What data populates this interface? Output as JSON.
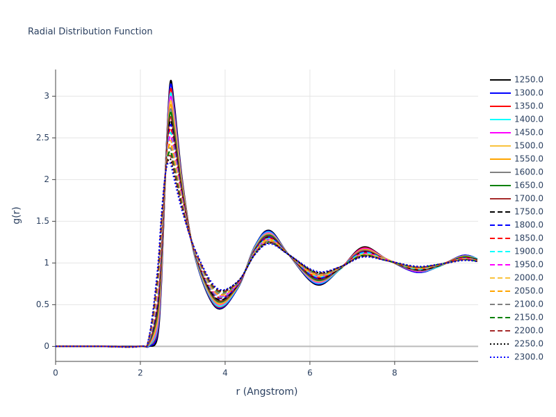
{
  "chart_data": {
    "type": "line",
    "title": "Radial Distribution Function",
    "x_label": "r (Angstrom)",
    "y_label": "g(r)",
    "x": [
      0,
      1,
      2.0,
      2.2,
      2.4,
      2.5,
      2.6,
      2.7,
      2.8,
      3.0,
      3.3,
      3.8,
      4.3,
      4.7,
      5.05,
      5.5,
      6.15,
      6.7,
      7.25,
      7.8,
      8.5,
      9.0,
      9.6,
      9.95
    ],
    "xlim": [
      0,
      9.97
    ],
    "xticks": [
      0,
      2,
      4,
      6,
      8
    ],
    "ylim": [
      -0.18,
      3.32
    ],
    "yticks": [
      0,
      0.5,
      1,
      1.5,
      2,
      2.5,
      3
    ],
    "grid": true,
    "series": [
      {
        "name": "1250.0",
        "color": "black",
        "dash": "solid",
        "values": [
          0,
          0,
          0,
          0,
          0.1,
          0.8,
          2.2,
          3.15,
          2.9,
          1.95,
          1.05,
          0.46,
          0.7,
          1.2,
          1.39,
          1.1,
          0.74,
          0.92,
          1.19,
          1.05,
          0.89,
          0.95,
          1.09,
          1.05
        ]
      },
      {
        "name": "1300.0",
        "color": "blue",
        "dash": "solid",
        "values": [
          0,
          0,
          0,
          0,
          0.14,
          0.84,
          2.2,
          3.11,
          2.86,
          1.93,
          1.05,
          0.47,
          0.7,
          1.2,
          1.38,
          1.1,
          0.75,
          0.92,
          1.18,
          1.05,
          0.89,
          0.95,
          1.09,
          1.05
        ]
      },
      {
        "name": "1350.0",
        "color": "red",
        "dash": "solid",
        "values": [
          0,
          0,
          0,
          0.01,
          0.18,
          0.88,
          2.19,
          3.06,
          2.81,
          1.92,
          1.06,
          0.48,
          0.71,
          1.19,
          1.37,
          1.1,
          0.76,
          0.92,
          1.18,
          1.05,
          0.9,
          0.95,
          1.08,
          1.05
        ]
      },
      {
        "name": "1400.0",
        "color": "cyan",
        "dash": "solid",
        "values": [
          0,
          0,
          0,
          0.01,
          0.21,
          0.91,
          2.19,
          3.01,
          2.77,
          1.9,
          1.06,
          0.49,
          0.71,
          1.19,
          1.37,
          1.1,
          0.76,
          0.92,
          1.17,
          1.05,
          0.9,
          0.95,
          1.08,
          1.05
        ]
      },
      {
        "name": "1450.0",
        "color": "magenta",
        "dash": "solid",
        "values": [
          0,
          0,
          0,
          0.02,
          0.25,
          0.95,
          2.18,
          2.97,
          2.73,
          1.88,
          1.07,
          0.51,
          0.72,
          1.18,
          1.36,
          1.1,
          0.77,
          0.93,
          1.17,
          1.05,
          0.9,
          0.96,
          1.08,
          1.04
        ]
      },
      {
        "name": "1500.0",
        "color": "#f9c23c",
        "dash": "solid",
        "values": [
          0,
          0,
          0,
          0.02,
          0.29,
          0.99,
          2.18,
          2.92,
          2.69,
          1.87,
          1.07,
          0.52,
          0.72,
          1.18,
          1.35,
          1.1,
          0.78,
          0.93,
          1.16,
          1.05,
          0.91,
          0.96,
          1.08,
          1.04
        ]
      },
      {
        "name": "1550.0",
        "color": "#ffa500",
        "dash": "solid",
        "values": [
          0,
          0,
          0,
          0.03,
          0.33,
          1.03,
          2.17,
          2.88,
          2.64,
          1.85,
          1.08,
          0.53,
          0.72,
          1.17,
          1.34,
          1.1,
          0.79,
          0.93,
          1.16,
          1.04,
          0.91,
          0.96,
          1.07,
          1.04
        ]
      },
      {
        "name": "1600.0",
        "color": "gray",
        "dash": "solid",
        "values": [
          0,
          0,
          0,
          0.03,
          0.37,
          1.07,
          2.17,
          2.83,
          2.6,
          1.83,
          1.08,
          0.54,
          0.73,
          1.17,
          1.34,
          1.1,
          0.79,
          0.93,
          1.15,
          1.04,
          0.91,
          0.96,
          1.07,
          1.04
        ]
      },
      {
        "name": "1650.0",
        "color": "green",
        "dash": "solid",
        "values": [
          0,
          0,
          0,
          0.04,
          0.4,
          1.1,
          2.16,
          2.79,
          2.56,
          1.82,
          1.09,
          0.55,
          0.73,
          1.16,
          1.33,
          1.1,
          0.8,
          0.93,
          1.14,
          1.04,
          0.92,
          0.96,
          1.07,
          1.04
        ]
      },
      {
        "name": "1700.0",
        "color": "#a52a2a",
        "dash": "solid",
        "values": [
          0,
          0,
          0,
          0.04,
          0.44,
          1.14,
          2.16,
          2.74,
          2.51,
          1.8,
          1.09,
          0.56,
          0.73,
          1.16,
          1.32,
          1.1,
          0.81,
          0.93,
          1.14,
          1.04,
          0.92,
          0.96,
          1.06,
          1.04
        ]
      },
      {
        "name": "1750.0",
        "color": "black",
        "dash": "dash",
        "values": [
          0,
          0,
          0,
          0.05,
          0.48,
          1.18,
          2.15,
          2.7,
          2.47,
          1.78,
          1.1,
          0.57,
          0.74,
          1.15,
          1.31,
          1.1,
          0.82,
          0.93,
          1.13,
          1.04,
          0.92,
          0.96,
          1.06,
          1.04
        ]
      },
      {
        "name": "1800.0",
        "color": "blue",
        "dash": "dash",
        "values": [
          0,
          0,
          0,
          0.05,
          0.52,
          1.22,
          2.15,
          2.65,
          2.43,
          1.77,
          1.1,
          0.59,
          0.74,
          1.15,
          1.31,
          1.1,
          0.82,
          0.94,
          1.13,
          1.04,
          0.93,
          0.97,
          1.06,
          1.03
        ]
      },
      {
        "name": "1850.0",
        "color": "red",
        "dash": "dash",
        "values": [
          0,
          0,
          0,
          0.06,
          0.56,
          1.26,
          2.14,
          2.61,
          2.39,
          1.75,
          1.11,
          0.6,
          0.75,
          1.14,
          1.3,
          1.1,
          0.83,
          0.94,
          1.12,
          1.04,
          0.93,
          0.97,
          1.06,
          1.03
        ]
      },
      {
        "name": "1900.0",
        "color": "cyan",
        "dash": "dash",
        "values": [
          0,
          0,
          0,
          0.06,
          0.6,
          1.3,
          2.14,
          2.56,
          2.34,
          1.73,
          1.11,
          0.61,
          0.75,
          1.14,
          1.29,
          1.1,
          0.84,
          0.94,
          1.12,
          1.04,
          0.93,
          0.97,
          1.05,
          1.03
        ]
      },
      {
        "name": "1950.0",
        "color": "magenta",
        "dash": "dash",
        "values": [
          0,
          0,
          0,
          0.07,
          0.63,
          1.33,
          2.13,
          2.52,
          2.3,
          1.72,
          1.12,
          0.62,
          0.75,
          1.13,
          1.28,
          1.1,
          0.85,
          0.94,
          1.11,
          1.04,
          0.94,
          0.97,
          1.05,
          1.03
        ]
      },
      {
        "name": "2000.0",
        "color": "#f9c23c",
        "dash": "dash",
        "values": [
          0,
          0,
          0,
          0.07,
          0.67,
          1.37,
          2.13,
          2.47,
          2.26,
          1.7,
          1.12,
          0.63,
          0.76,
          1.13,
          1.28,
          1.1,
          0.85,
          0.94,
          1.1,
          1.04,
          0.94,
          0.97,
          1.05,
          1.03
        ]
      },
      {
        "name": "2050.0",
        "color": "#ffa500",
        "dash": "dash",
        "values": [
          0,
          0,
          0,
          0.08,
          0.71,
          1.41,
          2.12,
          2.43,
          2.21,
          1.68,
          1.13,
          0.64,
          0.76,
          1.12,
          1.27,
          1.1,
          0.86,
          0.94,
          1.1,
          1.03,
          0.94,
          0.97,
          1.04,
          1.03
        ]
      },
      {
        "name": "2100.0",
        "color": "gray",
        "dash": "dash",
        "values": [
          0,
          0,
          0,
          0.08,
          0.75,
          1.45,
          2.12,
          2.38,
          2.17,
          1.67,
          1.13,
          0.65,
          0.76,
          1.12,
          1.26,
          1.1,
          0.87,
          0.94,
          1.09,
          1.03,
          0.95,
          0.97,
          1.04,
          1.03
        ]
      },
      {
        "name": "2150.0",
        "color": "green",
        "dash": "dash",
        "values": [
          0,
          0,
          0,
          0.09,
          0.79,
          1.49,
          2.11,
          2.34,
          2.13,
          1.65,
          1.14,
          0.67,
          0.77,
          1.11,
          1.25,
          1.1,
          0.88,
          0.95,
          1.09,
          1.03,
          0.95,
          0.98,
          1.04,
          1.02
        ]
      },
      {
        "name": "2200.0",
        "color": "#a52a2a",
        "dash": "dash",
        "values": [
          0,
          0,
          0,
          0.09,
          0.82,
          1.52,
          2.11,
          2.29,
          2.09,
          1.63,
          1.14,
          0.68,
          0.77,
          1.11,
          1.25,
          1.1,
          0.88,
          0.95,
          1.08,
          1.03,
          0.95,
          0.98,
          1.04,
          1.02
        ]
      },
      {
        "name": "2250.0",
        "color": "black",
        "dash": "dot",
        "values": [
          0,
          0,
          0,
          0.1,
          0.86,
          1.56,
          2.1,
          2.25,
          2.04,
          1.62,
          1.15,
          0.69,
          0.78,
          1.1,
          1.24,
          1.1,
          0.89,
          0.95,
          1.08,
          1.03,
          0.96,
          0.98,
          1.03,
          1.02
        ]
      },
      {
        "name": "2300.0",
        "color": "blue",
        "dash": "dot",
        "values": [
          0,
          0,
          0,
          0.1,
          0.9,
          1.6,
          2.1,
          2.2,
          2.0,
          1.6,
          1.15,
          0.7,
          0.78,
          1.1,
          1.23,
          1.1,
          0.9,
          0.95,
          1.07,
          1.03,
          0.96,
          0.98,
          1.03,
          1.02
        ]
      }
    ]
  }
}
